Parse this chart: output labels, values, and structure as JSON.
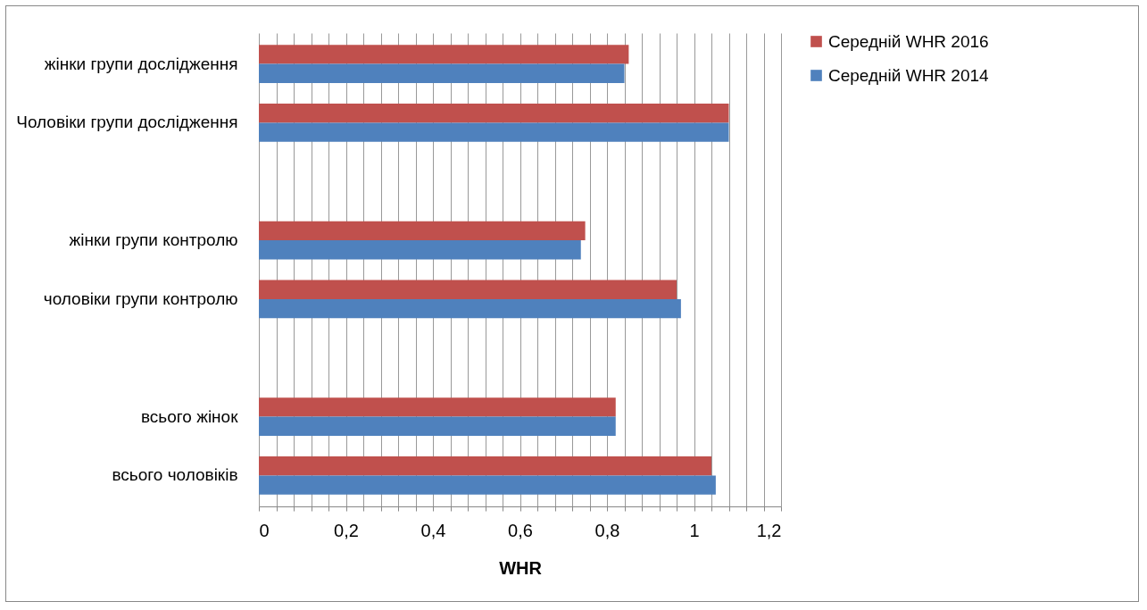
{
  "chart_data": {
    "type": "bar",
    "orientation": "horizontal",
    "xlabel": "WHR",
    "categories": [
      "жінки групи дослідження",
      "Чоловіки групи дослідження",
      null,
      "жінки групи контролю",
      "чоловіки групи контролю",
      null,
      "всього жінок",
      "всього чоловіків"
    ],
    "series": [
      {
        "name": "Середній WHR 2016",
        "color": "#c0504d",
        "values": [
          0.85,
          1.08,
          null,
          0.75,
          0.96,
          null,
          0.82,
          1.04
        ]
      },
      {
        "name": "Середній WHR 2014",
        "color": "#4f81bd",
        "values": [
          0.84,
          1.08,
          null,
          0.74,
          0.97,
          null,
          0.82,
          1.05
        ]
      }
    ],
    "xlim": [
      0,
      1.2
    ],
    "xticks": [
      0,
      {
        "value": 0.04,
        "label": null
      },
      {
        "value": 0.08,
        "label": null
      },
      {
        "value": 0.12,
        "label": null
      },
      {
        "value": 0.16,
        "label": null
      },
      {
        "value": 0.2,
        "label": "0,2"
      },
      {
        "value": 0.24,
        "label": null
      },
      {
        "value": 0.28,
        "label": null
      },
      {
        "value": 0.32,
        "label": null
      },
      {
        "value": 0.36,
        "label": null
      },
      {
        "value": 0.4,
        "label": "0,4"
      },
      {
        "value": 0.44,
        "label": null
      },
      {
        "value": 0.48,
        "label": null
      },
      {
        "value": 0.52,
        "label": null
      },
      {
        "value": 0.56,
        "label": null
      },
      {
        "value": 0.6,
        "label": "0,6"
      },
      {
        "value": 0.64,
        "label": null
      },
      {
        "value": 0.68,
        "label": null
      },
      {
        "value": 0.72,
        "label": null
      },
      {
        "value": 0.76,
        "label": null
      },
      {
        "value": 0.8,
        "label": "0,8"
      },
      {
        "value": 0.84,
        "label": null
      },
      {
        "value": 0.88,
        "label": null
      },
      {
        "value": 0.92,
        "label": null
      },
      {
        "value": 0.96,
        "label": null
      },
      1,
      {
        "value": 1.04,
        "label": null
      },
      {
        "value": 1.08,
        "label": null
      },
      {
        "value": 1.12,
        "label": null
      },
      {
        "value": 1.16,
        "label": null
      },
      {
        "value": 1.2,
        "label": "1,2"
      }
    ],
    "grid": "x",
    "legend": "right"
  }
}
